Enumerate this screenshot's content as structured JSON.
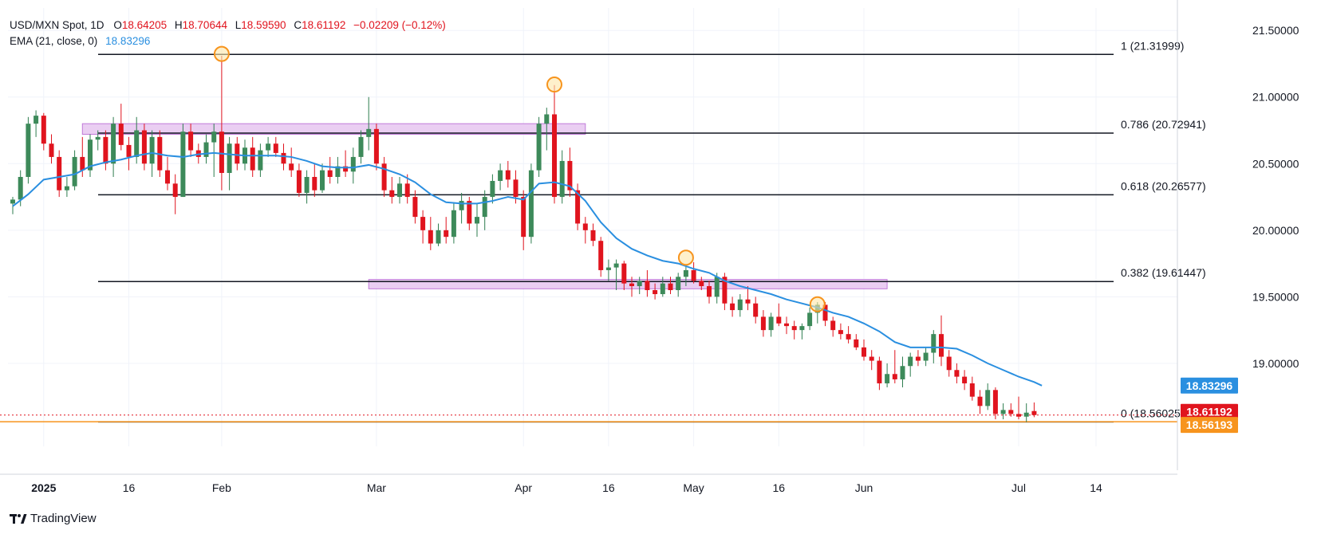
{
  "header": {
    "symbol": "USD/MXN Spot, 1D",
    "ohlc": [
      {
        "k": "O",
        "v": "18.64205"
      },
      {
        "k": "H",
        "v": "18.70644"
      },
      {
        "k": "L",
        "v": "18.59590"
      },
      {
        "k": "C",
        "v": "18.61192"
      }
    ],
    "change": "−0.02209 (−0.12%)",
    "ema_label": "EMA (21, close, 0)",
    "ema_value": "18.83296"
  },
  "brand": {
    "name": "TradingView"
  },
  "colors": {
    "up": "#2e7d4f",
    "up_body": "#3d8a5a",
    "down": "#e0141e",
    "ema": "#2a8fe0",
    "zone": "#e6c6f0",
    "zone_border": "#c07ad8",
    "marker": "#f7941d",
    "axis_text": "#131722",
    "grid": "#f0f3fa"
  },
  "chart_data": {
    "type": "candlestick",
    "interval": "1D",
    "ylim": [
      18.35,
      21.6
    ],
    "y_ticks": [
      "21.50000",
      "21.00000",
      "20.50000",
      "20.00000",
      "19.50000",
      "19.00000"
    ],
    "x_ticks": [
      "2025",
      "16",
      "Feb",
      "Mar",
      "Apr",
      "16",
      "May",
      "16",
      "Jun",
      "Jul",
      "14"
    ],
    "candles": [
      [
        20.2,
        20.25,
        20.12,
        20.23
      ],
      [
        20.23,
        20.45,
        20.18,
        20.4
      ],
      [
        20.4,
        20.85,
        20.35,
        20.8
      ],
      [
        20.8,
        20.9,
        20.7,
        20.86
      ],
      [
        20.86,
        20.88,
        20.6,
        20.65
      ],
      [
        20.65,
        20.72,
        20.5,
        20.55
      ],
      [
        20.55,
        20.6,
        20.25,
        20.3
      ],
      [
        20.3,
        20.4,
        20.25,
        20.33
      ],
      [
        20.33,
        20.6,
        20.3,
        20.55
      ],
      [
        20.55,
        20.7,
        20.4,
        20.45
      ],
      [
        20.45,
        20.72,
        20.4,
        20.68
      ],
      [
        20.68,
        20.75,
        20.6,
        20.7
      ],
      [
        20.7,
        20.75,
        20.45,
        20.5
      ],
      [
        20.5,
        20.85,
        20.4,
        20.8
      ],
      [
        20.8,
        20.95,
        20.6,
        20.64
      ],
      [
        20.64,
        20.7,
        20.45,
        20.55
      ],
      [
        20.55,
        20.85,
        20.5,
        20.75
      ],
      [
        20.75,
        20.8,
        20.45,
        20.5
      ],
      [
        20.5,
        20.75,
        20.4,
        20.7
      ],
      [
        20.7,
        20.75,
        20.4,
        20.45
      ],
      [
        20.45,
        20.55,
        20.3,
        20.35
      ],
      [
        20.35,
        20.42,
        20.12,
        20.25
      ],
      [
        20.25,
        20.8,
        20.25,
        20.74
      ],
      [
        20.74,
        20.8,
        20.55,
        20.6
      ],
      [
        20.6,
        20.65,
        20.5,
        20.55
      ],
      [
        20.55,
        20.72,
        20.5,
        20.66
      ],
      [
        20.66,
        20.8,
        20.4,
        20.74
      ],
      [
        20.74,
        21.31,
        20.3,
        20.43
      ],
      [
        20.43,
        20.7,
        20.3,
        20.65
      ],
      [
        20.65,
        20.7,
        20.45,
        20.5
      ],
      [
        20.5,
        20.68,
        20.45,
        20.62
      ],
      [
        20.62,
        20.7,
        20.4,
        20.45
      ],
      [
        20.45,
        20.65,
        20.4,
        20.6
      ],
      [
        20.6,
        20.7,
        20.55,
        20.65
      ],
      [
        20.65,
        20.7,
        20.55,
        20.58
      ],
      [
        20.58,
        20.65,
        20.45,
        20.5
      ],
      [
        20.5,
        20.62,
        20.4,
        20.45
      ],
      [
        20.45,
        20.5,
        20.25,
        20.28
      ],
      [
        20.28,
        20.45,
        20.2,
        20.4
      ],
      [
        20.4,
        20.5,
        20.25,
        20.3
      ],
      [
        20.3,
        20.5,
        20.28,
        20.45
      ],
      [
        20.45,
        20.55,
        20.35,
        20.4
      ],
      [
        20.4,
        20.55,
        20.35,
        20.48
      ],
      [
        20.48,
        20.6,
        20.4,
        20.44
      ],
      [
        20.44,
        20.62,
        20.35,
        20.55
      ],
      [
        20.55,
        20.75,
        20.5,
        20.7
      ],
      [
        20.7,
        21.0,
        20.6,
        20.76
      ],
      [
        20.76,
        20.8,
        20.45,
        20.5
      ],
      [
        20.5,
        20.55,
        20.25,
        20.3
      ],
      [
        20.3,
        20.4,
        20.2,
        20.25
      ],
      [
        20.25,
        20.4,
        20.2,
        20.35
      ],
      [
        20.35,
        20.42,
        20.2,
        20.25
      ],
      [
        20.25,
        20.3,
        20.05,
        20.1
      ],
      [
        20.1,
        20.15,
        19.9,
        20.0
      ],
      [
        20.0,
        20.1,
        19.85,
        19.9
      ],
      [
        19.9,
        20.05,
        19.88,
        20.0
      ],
      [
        20.0,
        20.1,
        19.9,
        19.95
      ],
      [
        19.95,
        20.2,
        19.9,
        20.15
      ],
      [
        20.15,
        20.28,
        20.05,
        20.22
      ],
      [
        20.22,
        20.25,
        20.0,
        20.05
      ],
      [
        20.05,
        20.2,
        19.95,
        20.1
      ],
      [
        20.1,
        20.3,
        20.0,
        20.25
      ],
      [
        20.25,
        20.42,
        20.2,
        20.37
      ],
      [
        20.37,
        20.5,
        20.3,
        20.45
      ],
      [
        20.45,
        20.52,
        20.32,
        20.38
      ],
      [
        20.38,
        20.45,
        20.2,
        20.25
      ],
      [
        20.25,
        20.3,
        19.85,
        19.95
      ],
      [
        19.95,
        20.5,
        19.9,
        20.45
      ],
      [
        20.45,
        20.85,
        20.4,
        20.8
      ],
      [
        20.8,
        20.92,
        20.6,
        20.87
      ],
      [
        20.87,
        21.09,
        20.2,
        20.25
      ],
      [
        20.25,
        20.6,
        20.2,
        20.52
      ],
      [
        20.52,
        20.62,
        20.25,
        20.3
      ],
      [
        20.3,
        20.35,
        20.0,
        20.05
      ],
      [
        20.05,
        20.1,
        19.9,
        20.0
      ],
      [
        20.0,
        20.05,
        19.88,
        19.92
      ],
      [
        19.92,
        19.95,
        19.65,
        19.7
      ],
      [
        19.7,
        19.78,
        19.62,
        19.72
      ],
      [
        19.72,
        19.78,
        19.55,
        19.75
      ],
      [
        19.75,
        19.77,
        19.55,
        19.6
      ],
      [
        19.6,
        19.65,
        19.5,
        19.58
      ],
      [
        19.58,
        19.65,
        19.52,
        19.62
      ],
      [
        19.62,
        19.7,
        19.5,
        19.55
      ],
      [
        19.55,
        19.6,
        19.48,
        19.52
      ],
      [
        19.52,
        19.65,
        19.5,
        19.6
      ],
      [
        19.6,
        19.65,
        19.52,
        19.55
      ],
      [
        19.55,
        19.68,
        19.5,
        19.65
      ],
      [
        19.65,
        19.74,
        19.58,
        19.7
      ],
      [
        19.7,
        19.76,
        19.6,
        19.62
      ],
      [
        19.62,
        19.65,
        19.55,
        19.58
      ],
      [
        19.58,
        19.62,
        19.45,
        19.5
      ],
      [
        19.5,
        19.68,
        19.45,
        19.65
      ],
      [
        19.65,
        19.68,
        19.4,
        19.45
      ],
      [
        19.45,
        19.5,
        19.35,
        19.4
      ],
      [
        19.4,
        19.52,
        19.35,
        19.48
      ],
      [
        19.48,
        19.58,
        19.4,
        19.45
      ],
      [
        19.45,
        19.5,
        19.3,
        19.35
      ],
      [
        19.35,
        19.4,
        19.2,
        19.25
      ],
      [
        19.25,
        19.38,
        19.2,
        19.35
      ],
      [
        19.35,
        19.45,
        19.28,
        19.3
      ],
      [
        19.3,
        19.35,
        19.22,
        19.28
      ],
      [
        19.28,
        19.32,
        19.18,
        19.25
      ],
      [
        19.25,
        19.3,
        19.18,
        19.28
      ],
      [
        19.28,
        19.42,
        19.25,
        19.38
      ],
      [
        19.38,
        19.46,
        19.3,
        19.44
      ],
      [
        19.44,
        19.46,
        19.28,
        19.32
      ],
      [
        19.32,
        19.35,
        19.2,
        19.25
      ],
      [
        19.25,
        19.3,
        19.18,
        19.22
      ],
      [
        19.22,
        19.28,
        19.15,
        19.18
      ],
      [
        19.18,
        19.22,
        19.1,
        19.12
      ],
      [
        19.12,
        19.18,
        19.02,
        19.05
      ],
      [
        19.05,
        19.1,
        18.95,
        19.02
      ],
      [
        19.02,
        19.05,
        18.8,
        18.85
      ],
      [
        18.85,
        19.0,
        18.82,
        18.92
      ],
      [
        18.92,
        19.1,
        18.85,
        18.88
      ],
      [
        18.88,
        19.05,
        18.82,
        18.98
      ],
      [
        18.98,
        19.08,
        18.9,
        19.05
      ],
      [
        19.05,
        19.1,
        18.98,
        19.02
      ],
      [
        19.02,
        19.12,
        18.98,
        19.08
      ],
      [
        19.08,
        19.25,
        19.0,
        19.22
      ],
      [
        19.22,
        19.36,
        18.98,
        19.05
      ],
      [
        19.05,
        19.1,
        18.9,
        18.95
      ],
      [
        18.95,
        19.0,
        18.85,
        18.9
      ],
      [
        18.9,
        18.95,
        18.8,
        18.85
      ],
      [
        18.85,
        18.9,
        18.72,
        18.75
      ],
      [
        18.75,
        18.8,
        18.62,
        18.68
      ],
      [
        18.68,
        18.85,
        18.65,
        18.8
      ],
      [
        18.8,
        18.82,
        18.58,
        18.62
      ],
      [
        18.62,
        18.7,
        18.58,
        18.65
      ],
      [
        18.65,
        18.7,
        18.6,
        18.62
      ],
      [
        18.62,
        18.75,
        18.58,
        18.6
      ],
      [
        18.6,
        18.7,
        18.56,
        18.63
      ],
      [
        18.64205,
        18.70644,
        18.5959,
        18.61192
      ]
    ],
    "ema": [
      [
        0,
        20.18
      ],
      [
        2,
        20.27
      ],
      [
        4,
        20.38
      ],
      [
        6,
        20.4
      ],
      [
        8,
        20.42
      ],
      [
        10,
        20.48
      ],
      [
        12,
        20.51
      ],
      [
        14,
        20.53
      ],
      [
        16,
        20.56
      ],
      [
        18,
        20.58
      ],
      [
        20,
        20.56
      ],
      [
        22,
        20.55
      ],
      [
        24,
        20.57
      ],
      [
        26,
        20.58
      ],
      [
        28,
        20.57
      ],
      [
        30,
        20.56
      ],
      [
        32,
        20.56
      ],
      [
        34,
        20.56
      ],
      [
        36,
        20.55
      ],
      [
        38,
        20.52
      ],
      [
        40,
        20.48
      ],
      [
        42,
        20.47
      ],
      [
        44,
        20.47
      ],
      [
        46,
        20.49
      ],
      [
        48,
        20.46
      ],
      [
        50,
        20.42
      ],
      [
        52,
        20.36
      ],
      [
        54,
        20.27
      ],
      [
        56,
        20.21
      ],
      [
        58,
        20.2
      ],
      [
        60,
        20.2
      ],
      [
        62,
        20.22
      ],
      [
        64,
        20.25
      ],
      [
        66,
        20.23
      ],
      [
        68,
        20.35
      ],
      [
        70,
        20.36
      ],
      [
        72,
        20.33
      ],
      [
        74,
        20.22
      ],
      [
        76,
        20.06
      ],
      [
        78,
        19.94
      ],
      [
        80,
        19.86
      ],
      [
        82,
        19.81
      ],
      [
        84,
        19.77
      ],
      [
        86,
        19.75
      ],
      [
        88,
        19.71
      ],
      [
        90,
        19.68
      ],
      [
        92,
        19.62
      ],
      [
        94,
        19.58
      ],
      [
        96,
        19.55
      ],
      [
        98,
        19.52
      ],
      [
        100,
        19.48
      ],
      [
        102,
        19.45
      ],
      [
        104,
        19.42
      ],
      [
        106,
        19.38
      ],
      [
        108,
        19.35
      ],
      [
        110,
        19.3
      ],
      [
        112,
        19.24
      ],
      [
        114,
        19.16
      ],
      [
        116,
        19.12
      ],
      [
        118,
        19.12
      ],
      [
        120,
        19.12
      ],
      [
        122,
        19.11
      ],
      [
        124,
        19.06
      ],
      [
        126,
        19.0
      ],
      [
        128,
        18.95
      ],
      [
        130,
        18.9
      ],
      [
        132,
        18.86
      ],
      [
        133,
        18.83296
      ]
    ],
    "fib_levels": [
      {
        "level": "1",
        "value": 21.31999,
        "label": "1 (21.31999)"
      },
      {
        "level": "0.786",
        "value": 20.72941,
        "label": "0.786 (20.72941)"
      },
      {
        "level": "0.618",
        "value": 20.26577,
        "label": "0.618 (20.26577)"
      },
      {
        "level": "0.382",
        "value": 19.61447,
        "label": "0.382 (19.61447)"
      },
      {
        "level": "0",
        "value": 18.56025,
        "label": "0 (18.56025)"
      }
    ],
    "zones": [
      {
        "i0": 9,
        "i1": 74,
        "y0": 20.72,
        "y1": 20.8
      },
      {
        "i0": 46,
        "i1": 113,
        "y0": 19.56,
        "y1": 19.63
      }
    ],
    "markers": [
      {
        "i": 27,
        "value": 21.3
      },
      {
        "i": 70,
        "value": 21.07
      },
      {
        "i": 87,
        "value": 19.77
      },
      {
        "i": 104,
        "value": 19.42
      }
    ],
    "price_labels": [
      {
        "value": 18.83296,
        "text": "18.83296",
        "color": "#2a8fe0"
      },
      {
        "value": 18.61192,
        "text": "18.61192",
        "color": "#e0141e"
      },
      {
        "value": 18.56193,
        "text": "18.56193",
        "color": "#f7941d"
      }
    ],
    "support_line": 18.56193,
    "last_close": 18.61192
  }
}
